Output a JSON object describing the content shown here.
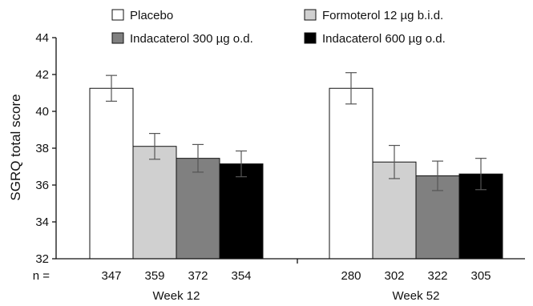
{
  "chart_data": {
    "type": "bar",
    "ylabel": "SGRQ total score",
    "xlabel": "",
    "ylim": [
      32,
      44
    ],
    "yticks": [
      32,
      34,
      36,
      38,
      40,
      42,
      44
    ],
    "grid": false,
    "legend_position": "top",
    "categories": [
      "Week 12",
      "Week 52"
    ],
    "series": [
      {
        "name": "Placebo",
        "color": "#ffffff",
        "values": [
          41.25,
          41.25
        ],
        "error": [
          0.7,
          0.85
        ],
        "n": [
          "347",
          "280"
        ]
      },
      {
        "name": "Formoterol 12 µg b.i.d.",
        "color": "#d0d0d0",
        "values": [
          38.1,
          37.25
        ],
        "error": [
          0.7,
          0.9
        ],
        "n": [
          "359",
          "302"
        ]
      },
      {
        "name": "Indacaterol 300 µg o.d.",
        "color": "#808080",
        "values": [
          37.45,
          36.5
        ],
        "error": [
          0.75,
          0.8
        ],
        "n": [
          "372",
          "322"
        ]
      },
      {
        "name": "Indacaterol 600 µg o.d.",
        "color": "#000000",
        "values": [
          37.15,
          36.6
        ],
        "error": [
          0.7,
          0.85
        ],
        "n": [
          "354",
          "305"
        ]
      }
    ],
    "n_prefix": "n ="
  }
}
